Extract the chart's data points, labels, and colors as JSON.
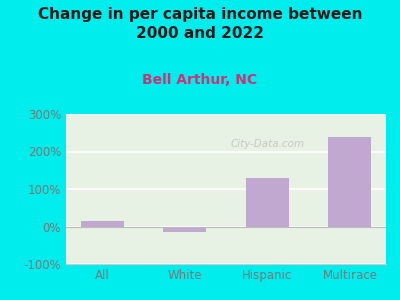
{
  "title": "Change in per capita income between\n2000 and 2022",
  "subtitle": "Bell Arthur, NC",
  "categories": [
    "All",
    "White",
    "Hispanic",
    "Multirace"
  ],
  "values": [
    15,
    -15,
    130,
    240
  ],
  "bar_color": "#c0a8d0",
  "background_outer": "#00eded",
  "background_plot_top": "#e8f0e8",
  "background_plot_bottom": "#d8eedc",
  "title_color": "#1a1a1a",
  "subtitle_color": "#cc3377",
  "tick_label_color": "#777777",
  "ylim": [
    -100,
    300
  ],
  "yticks": [
    -100,
    0,
    100,
    200,
    300
  ],
  "ytick_labels": [
    "-100%",
    "0%",
    "100%",
    "200%",
    "300%"
  ],
  "watermark": "City-Data.com",
  "title_fontsize": 11,
  "subtitle_fontsize": 10,
  "tick_fontsize": 8.5
}
